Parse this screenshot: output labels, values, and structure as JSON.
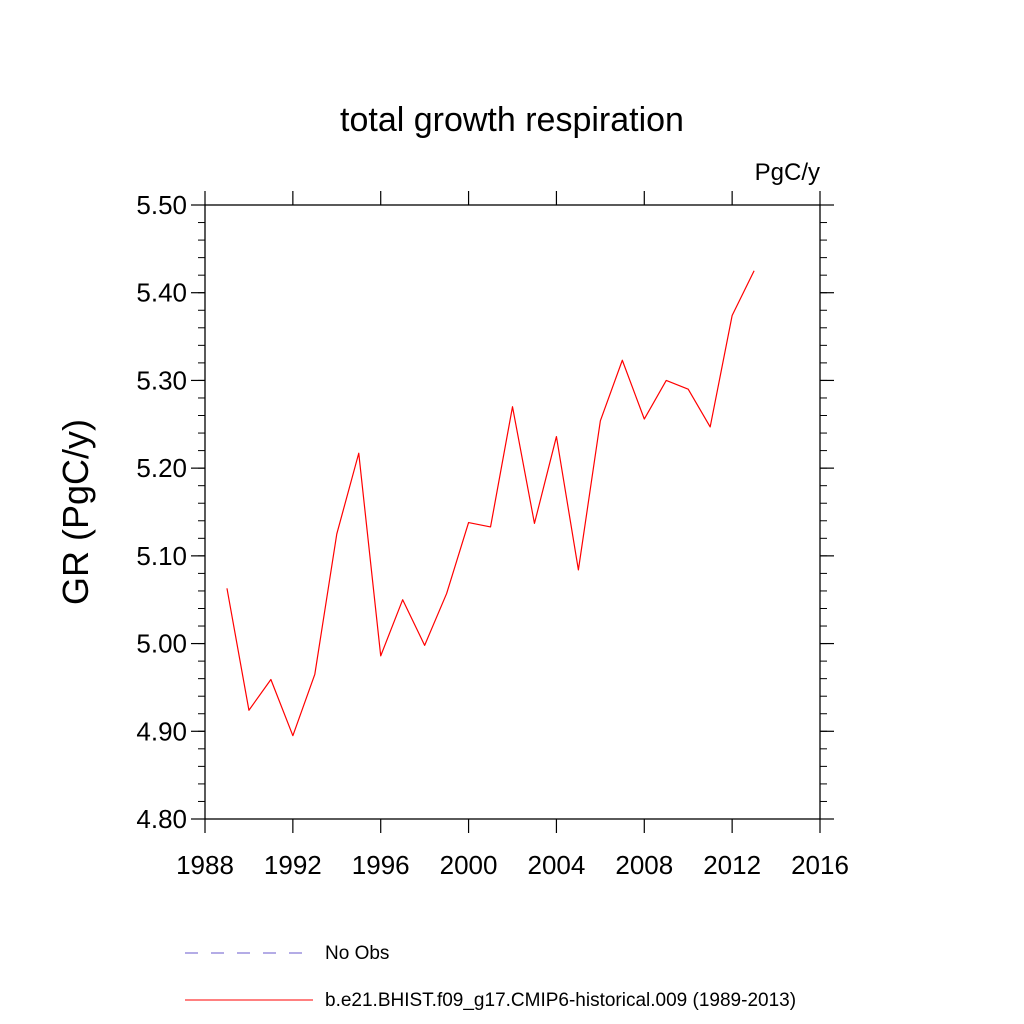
{
  "chart_data": {
    "type": "line",
    "title": "total growth respiration",
    "units_label": "PgC/y",
    "ylabel": "GR  (PgC/y)",
    "xlabel": "",
    "xlim": [
      1988,
      2016
    ],
    "ylim": [
      4.8,
      5.5
    ],
    "x_ticks": [
      "1988",
      "1992",
      "1996",
      "2000",
      "2004",
      "2008",
      "2012",
      "2016"
    ],
    "y_ticks": [
      "4.80",
      "4.90",
      "5.00",
      "5.10",
      "5.20",
      "5.30",
      "5.40",
      "5.50"
    ],
    "grid": false,
    "legend_position": "bottom",
    "series": [
      {
        "name": "b.e21.BHIST.f09_g17.CMIP6-historical.009 (1989-2013)",
        "color": "#ff0000",
        "style": "solid",
        "x": [
          1989,
          1990,
          1991,
          1992,
          1993,
          1994,
          1995,
          1996,
          1997,
          1998,
          1999,
          2000,
          2001,
          2002,
          2003,
          2004,
          2005,
          2006,
          2007,
          2008,
          2009,
          2010,
          2011,
          2012,
          2013
        ],
        "y": [
          5.063,
          4.924,
          4.959,
          4.895,
          4.965,
          5.125,
          5.217,
          4.986,
          5.05,
          4.998,
          5.057,
          5.138,
          5.133,
          5.27,
          5.137,
          5.236,
          5.084,
          5.254,
          5.323,
          5.256,
          5.3,
          5.29,
          5.247,
          5.374,
          5.425
        ]
      }
    ],
    "legend": [
      {
        "label": "No Obs",
        "color": "#6a5acd",
        "style": "dashed"
      },
      {
        "label": "b.e21.BHIST.f09_g17.CMIP6-historical.009 (1989-2013)",
        "color": "#ff0000",
        "style": "solid"
      }
    ]
  }
}
